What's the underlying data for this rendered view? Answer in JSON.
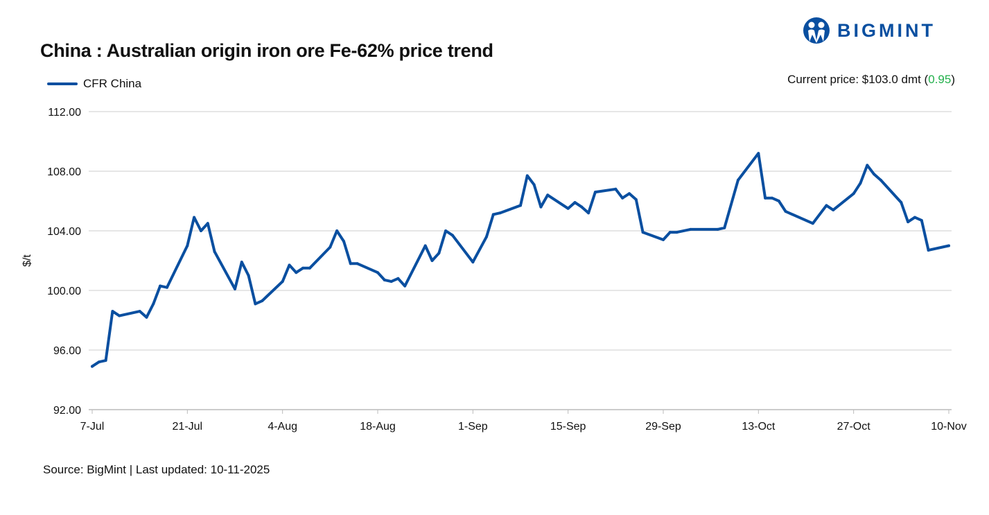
{
  "header": {
    "title": "China : Australian origin iron ore Fe-62% price trend",
    "logo_text": "BIGMINT"
  },
  "current_price": {
    "label": "Current price: $103.0 dmt (",
    "change": "0.95",
    "close": ")",
    "change_color": "#22b04b"
  },
  "footer": {
    "source": "Source: BigMint | Last updated: 10-11-2025"
  },
  "chart_data": {
    "type": "line",
    "title": "China : Australian origin iron ore Fe-62% price trend",
    "xlabel": "",
    "ylabel": "$/t",
    "ylim": [
      92,
      112
    ],
    "yticks": [
      "92.00",
      "96.00",
      "100.00",
      "104.00",
      "108.00",
      "112.00"
    ],
    "xticks": [
      "7-Jul",
      "21-Jul",
      "4-Aug",
      "18-Aug",
      "1-Sep",
      "15-Sep",
      "29-Sep",
      "13-Oct",
      "27-Oct",
      "10-Nov"
    ],
    "grid": "horizontal",
    "legend": "top-left",
    "line_color": "#0a4fa0",
    "series": [
      {
        "name": "CFR China",
        "x": [
          "7-Jul",
          "8-Jul",
          "9-Jul",
          "10-Jul",
          "11-Jul",
          "14-Jul",
          "15-Jul",
          "16-Jul",
          "17-Jul",
          "18-Jul",
          "21-Jul",
          "22-Jul",
          "23-Jul",
          "24-Jul",
          "25-Jul",
          "28-Jul",
          "29-Jul",
          "30-Jul",
          "31-Jul",
          "1-Aug",
          "4-Aug",
          "5-Aug",
          "6-Aug",
          "7-Aug",
          "8-Aug",
          "11-Aug",
          "12-Aug",
          "13-Aug",
          "14-Aug",
          "15-Aug",
          "18-Aug",
          "19-Aug",
          "20-Aug",
          "21-Aug",
          "22-Aug",
          "25-Aug",
          "26-Aug",
          "27-Aug",
          "28-Aug",
          "29-Aug",
          "1-Sep",
          "3-Sep",
          "4-Sep",
          "5-Sep",
          "8-Sep",
          "9-Sep",
          "10-Sep",
          "11-Sep",
          "12-Sep",
          "15-Sep",
          "16-Sep",
          "17-Sep",
          "18-Sep",
          "19-Sep",
          "22-Sep",
          "23-Sep",
          "24-Sep",
          "25-Sep",
          "26-Sep",
          "29-Sep",
          "30-Sep",
          "1-Oct",
          "3-Oct",
          "7-Oct",
          "8-Oct",
          "10-Oct",
          "13-Oct",
          "14-Oct",
          "15-Oct",
          "16-Oct",
          "17-Oct",
          "21-Oct",
          "23-Oct",
          "24-Oct",
          "27-Oct",
          "28-Oct",
          "29-Oct",
          "30-Oct",
          "31-Oct",
          "3-Nov",
          "4-Nov",
          "5-Nov",
          "6-Nov",
          "7-Nov",
          "10-Nov"
        ],
        "values": [
          94.9,
          95.2,
          95.3,
          98.6,
          98.3,
          98.6,
          98.2,
          99.1,
          100.3,
          100.2,
          103.0,
          104.9,
          104.0,
          104.5,
          102.6,
          100.1,
          101.9,
          101.0,
          99.1,
          99.3,
          100.6,
          101.7,
          101.2,
          101.5,
          101.5,
          102.9,
          104.0,
          103.3,
          101.8,
          101.8,
          101.2,
          100.7,
          100.6,
          100.8,
          100.3,
          103.0,
          102.0,
          102.5,
          104.0,
          103.7,
          101.9,
          103.6,
          105.1,
          105.2,
          105.7,
          107.7,
          107.1,
          105.6,
          106.4,
          105.5,
          105.9,
          105.6,
          105.2,
          106.6,
          106.8,
          106.2,
          106.5,
          106.1,
          103.9,
          103.4,
          103.9,
          103.9,
          104.1,
          104.1,
          104.2,
          107.4,
          109.2,
          106.2,
          106.2,
          106.0,
          105.3,
          104.5,
          105.7,
          105.4,
          106.5,
          107.2,
          108.4,
          107.8,
          107.4,
          105.9,
          104.6,
          104.9,
          104.7,
          102.7,
          103.0
        ]
      }
    ]
  }
}
